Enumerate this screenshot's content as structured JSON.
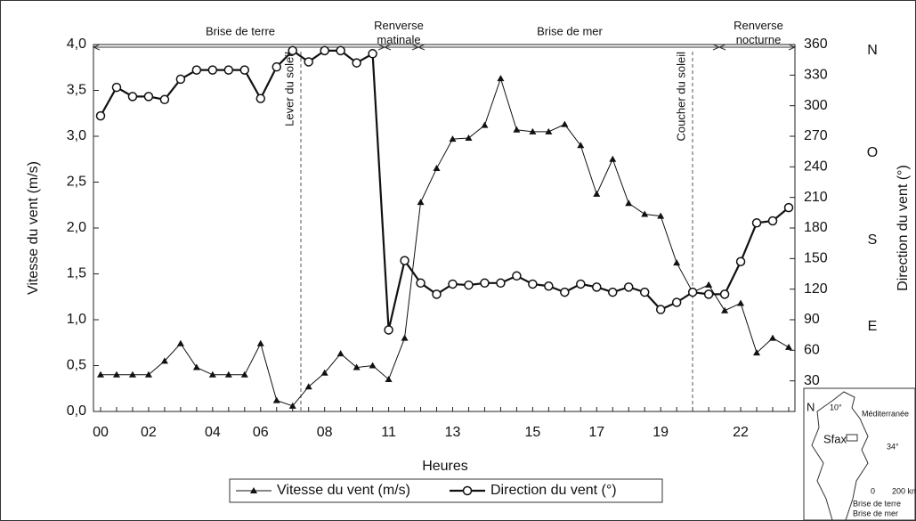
{
  "chart_data": {
    "type": "line",
    "xlabel": "Heures",
    "ylabel": "Vitesse du vent (m/s)",
    "y2label": "Direction du vent (°)",
    "categories": [
      "00",
      null,
      null,
      "02",
      null,
      null,
      null,
      "04",
      null,
      null,
      "06",
      null,
      null,
      null,
      "08",
      null,
      null,
      null,
      "11",
      null,
      null,
      null,
      "13",
      null,
      null,
      null,
      null,
      "15",
      null,
      null,
      null,
      "17",
      null,
      null,
      null,
      "19",
      null,
      null,
      null,
      null,
      "22",
      null,
      null,
      null
    ],
    "series": [
      {
        "name": "Vitesse du vent (m/s)",
        "color": "#111111",
        "marker": "triangle",
        "values": [
          0.4,
          0.4,
          0.4,
          0.4,
          0.55,
          0.74,
          0.48,
          0.4,
          0.4,
          0.4,
          0.74,
          0.12,
          0.06,
          0.27,
          0.42,
          0.63,
          0.48,
          0.5,
          0.35,
          0.8,
          2.28,
          2.65,
          2.97,
          2.98,
          3.12,
          3.63,
          3.07,
          3.05,
          3.05,
          3.13,
          2.9,
          2.37,
          2.75,
          2.27,
          2.15,
          2.13,
          1.62,
          1.3,
          1.38,
          1.1,
          1.18,
          0.64,
          0.8,
          0.7
        ]
      },
      {
        "name": "Direction du vent (°)",
        "color": "#111111",
        "marker": "circle",
        "axis": "y2",
        "values": [
          290,
          318,
          309,
          309,
          306,
          326,
          335,
          335,
          335,
          335,
          307,
          338,
          354,
          343,
          354,
          354,
          342,
          351,
          80,
          148,
          126,
          115,
          125,
          124,
          126,
          126,
          133,
          125,
          123,
          117,
          125,
          122,
          117,
          122,
          117,
          100,
          107,
          117,
          115,
          115,
          147,
          185,
          187,
          200
        ]
      }
    ],
    "ylim": [
      0,
      4
    ],
    "yticks": [
      {
        "value": 0,
        "label": "0,0"
      },
      {
        "value": 0.5,
        "label": "0,5"
      },
      {
        "value": 1,
        "label": "1,0"
      },
      {
        "value": 1.5,
        "label": "1,5"
      },
      {
        "value": 2,
        "label": "2,0"
      },
      {
        "value": 2.5,
        "label": "2,5"
      },
      {
        "value": 3,
        "label": "3,0"
      },
      {
        "value": 3.5,
        "label": "3,5"
      },
      {
        "value": 4,
        "label": "4,0"
      }
    ],
    "y2lim": [
      0,
      360
    ],
    "y2ticks": [
      30,
      60,
      90,
      120,
      150,
      180,
      210,
      240,
      270,
      300,
      330,
      360
    ],
    "compass": [
      "N",
      "O",
      "S",
      "E"
    ],
    "periods": [
      "Brise de terre",
      "Renverse matinale",
      "Brise de mer",
      "Renverse nocturne"
    ],
    "events": [
      "Lever du soleil",
      "Coucher du soleil"
    ],
    "grid": false,
    "legend": "bottom"
  },
  "inset_map": {
    "labels": [
      "10°",
      "Méditerranée",
      "N",
      "Sfax",
      "34°",
      "0",
      "200 km",
      "Brise de terre",
      "Brise de mer"
    ]
  }
}
